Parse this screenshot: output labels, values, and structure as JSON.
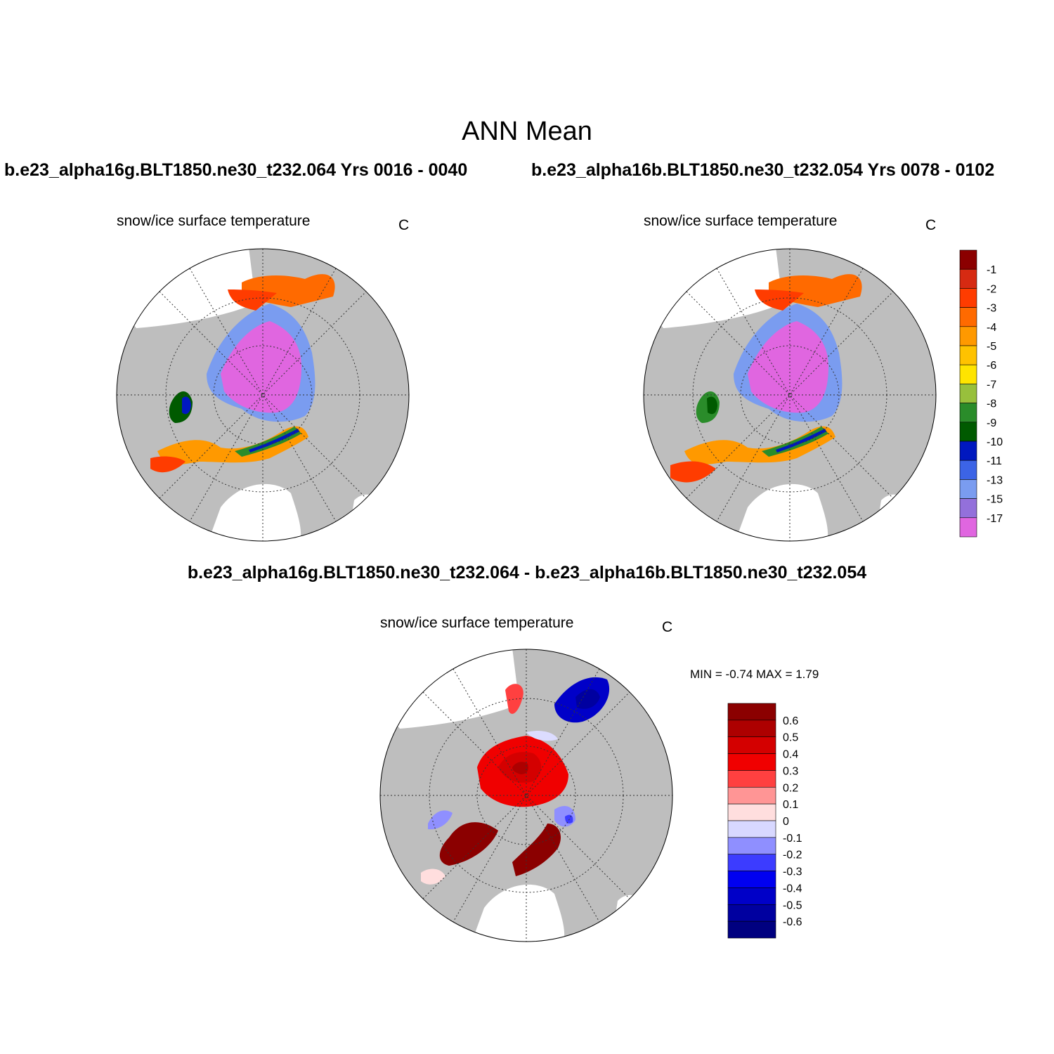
{
  "figure": {
    "title": "ANN Mean",
    "case_left": "b.e23_alpha16g.BLT1850.ne30_t232.064  Yrs 0016 - 0040",
    "case_right": "b.e23_alpha16b.BLT1850.ne30_t232.054  Yrs 0078 - 0102",
    "diff_title": "b.e23_alpha16g.BLT1850.ne30_t232.064 - b.e23_alpha16b.BLT1850.ne30_t232.054"
  },
  "panels": [
    {
      "variable": "snow/ice surface temperature",
      "units": "C"
    },
    {
      "variable": "snow/ice surface temperature",
      "units": "C"
    },
    {
      "variable": "snow/ice surface temperature",
      "units": "C",
      "stats": "MIN =  -0.74 MAX =   1.79"
    }
  ],
  "colorbar_abs": {
    "levels": [
      "-1",
      "-2",
      "-3",
      "-4",
      "-5",
      "-6",
      "-7",
      "-8",
      "-9",
      "-10",
      "-11",
      "-13",
      "-15",
      "-17"
    ],
    "colors": [
      "#8b0000",
      "#d62a12",
      "#ff3c00",
      "#ff6a00",
      "#ff9900",
      "#ffc200",
      "#ffe400",
      "#98c03c",
      "#2a8c2a",
      "#005a00",
      "#0018bf",
      "#3c64e6",
      "#7a9cf0",
      "#9370db",
      "#e066e0"
    ]
  },
  "colorbar_diff": {
    "levels": [
      "0.6",
      "0.5",
      "0.4",
      "0.3",
      "0.2",
      "0.1",
      "0",
      "-0.1",
      "-0.2",
      "-0.3",
      "-0.4",
      "-0.5",
      "-0.6"
    ],
    "colors": [
      "#8b0000",
      "#ad0000",
      "#d40000",
      "#f00000",
      "#ff4040",
      "#ff9595",
      "#ffdede",
      "#d8d8ff",
      "#8f8fff",
      "#3c3cff",
      "#0000f0",
      "#0000c8",
      "#0000a0",
      "#000080"
    ]
  },
  "palette": {
    "land": "#bebebe",
    "ocean": "#ffffff"
  }
}
